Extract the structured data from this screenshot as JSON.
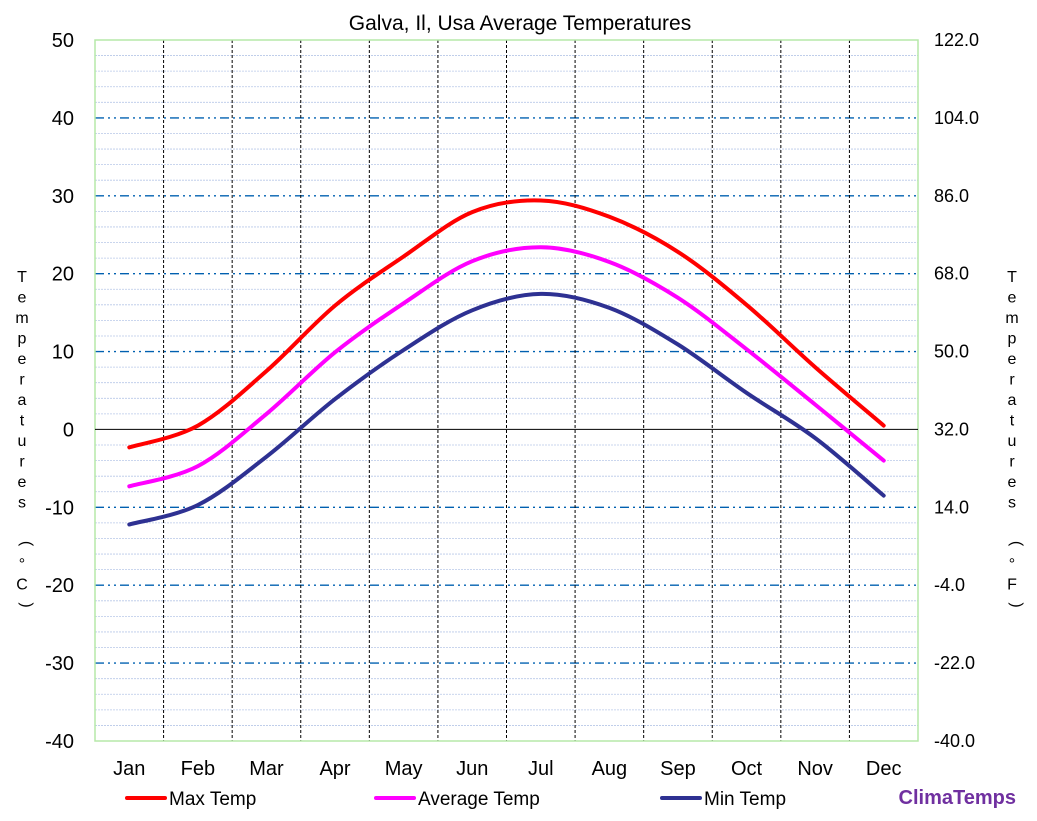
{
  "chart_data": {
    "type": "line",
    "title": "Galva, Il, Usa Average Temperatures",
    "categories": [
      "Jan",
      "Feb",
      "Mar",
      "Apr",
      "May",
      "Jun",
      "Jul",
      "Aug",
      "Sep",
      "Oct",
      "Nov",
      "Dec"
    ],
    "ylabel": "Temperatures (°C)",
    "y2label": "Temperatures (°F)",
    "ylim": [
      -40,
      50
    ],
    "y2lim": [
      -40.0,
      122.0
    ],
    "yticks": [
      "50",
      "40",
      "30",
      "20",
      "10",
      "0",
      "-10",
      "-20",
      "-30",
      "-40"
    ],
    "y2ticks": [
      "122.0",
      "104.0",
      "86.0",
      "68.0",
      "50.0",
      "32.0",
      "14.0",
      "-4.0",
      "-22.0",
      "-40.0"
    ],
    "grid": true,
    "legend_position": "bottom",
    "series": [
      {
        "name": "Max Temp",
        "color": "#ff0000",
        "values": [
          -2.3,
          0.5,
          7.5,
          15.9,
          22.2,
          27.9,
          29.4,
          27.3,
          22.8,
          16.0,
          8.0,
          0.5
        ]
      },
      {
        "name": "Average Temp",
        "color": "#ff00ff",
        "values": [
          -7.3,
          -4.7,
          2.0,
          9.9,
          16.2,
          21.6,
          23.4,
          21.5,
          16.9,
          10.3,
          3.2,
          -4.0
        ]
      },
      {
        "name": "Min Temp",
        "color": "#2e3192",
        "values": [
          -12.2,
          -9.7,
          -3.5,
          3.9,
          10.2,
          15.3,
          17.4,
          15.6,
          10.9,
          4.7,
          -1.1,
          -8.5
        ]
      }
    ]
  },
  "branding": {
    "text": "ClimaTemps",
    "color": "#7030a0"
  }
}
